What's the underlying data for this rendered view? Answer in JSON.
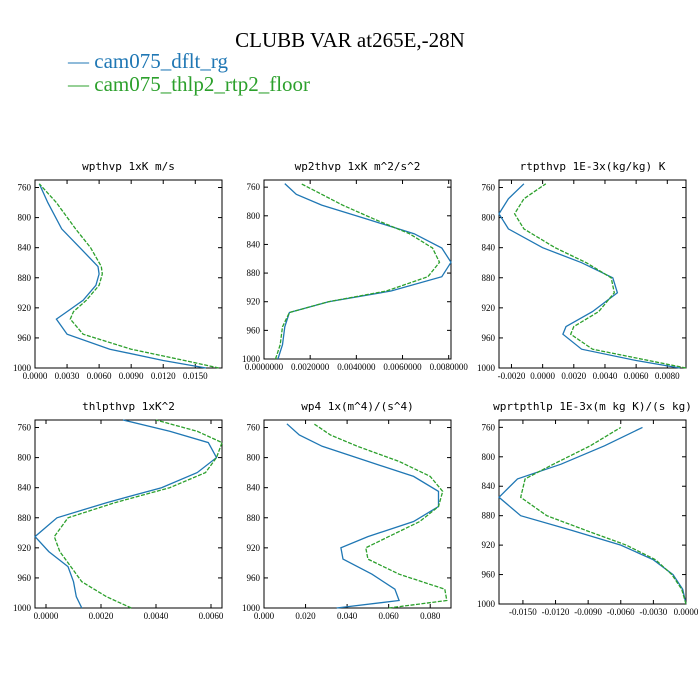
{
  "title": "CLUBB VAR at265E,-28N",
  "legend": [
    {
      "label": "— cam075_dflt_rg",
      "color": "#1f77b4"
    },
    {
      "label": "— cam075_thlp2_rtp2_floor",
      "color": "#2ca02c"
    }
  ],
  "chart_data": [
    {
      "type": "line",
      "title": "wpthvp  1xK m/s",
      "xlim": [
        0,
        0.0175
      ],
      "xticks": [
        0,
        0.003,
        0.006,
        0.009,
        0.012,
        0.015
      ],
      "xtick_labels": [
        "0.0000",
        "0.0030",
        "0.0060",
        "0.0090",
        "0.0120",
        "0.0150"
      ],
      "ylim": [
        1000,
        750
      ],
      "yticks": [
        760,
        800,
        840,
        880,
        920,
        960,
        1000
      ],
      "series": [
        {
          "name": "cam075_dflt_rg",
          "color": "#1f77b4",
          "dash": false,
          "x": [
            0.016,
            0.012,
            0.007,
            0.003,
            0.002,
            0.003,
            0.0045,
            0.0057,
            0.006,
            0.0059,
            0.0042,
            0.0025,
            0.0012,
            0.0004
          ],
          "y": [
            1000,
            990,
            975,
            955,
            935,
            925,
            910,
            890,
            875,
            865,
            840,
            815,
            780,
            755
          ]
        },
        {
          "name": "cam075_thlp2_rtp2_floor",
          "color": "#2ca02c",
          "dash": true,
          "x": [
            0.0172,
            0.014,
            0.009,
            0.0045,
            0.0033,
            0.0036,
            0.0048,
            0.006,
            0.0063,
            0.0062,
            0.0052,
            0.0038,
            0.002,
            0.0004
          ],
          "y": [
            1000,
            990,
            975,
            955,
            935,
            925,
            910,
            890,
            875,
            865,
            840,
            815,
            780,
            755
          ]
        }
      ]
    },
    {
      "type": "line",
      "title": "wp2thvp  1xK m^2/s^2",
      "xlim": [
        0,
        0.0081
      ],
      "xticks": [
        0,
        0.002,
        0.004,
        0.006,
        0.008
      ],
      "xtick_labels": [
        "0.0000000",
        "0.0020000",
        "0.0040000",
        "0.0060000",
        "0.0080000"
      ],
      "ylim": [
        1000,
        750
      ],
      "yticks": [
        760,
        800,
        840,
        880,
        920,
        960,
        1000
      ],
      "series": [
        {
          "name": "cam075_dflt_rg",
          "color": "#1f77b4",
          "dash": false,
          "x": [
            0.0006,
            0.0008,
            0.0009,
            0.0011,
            0.0028,
            0.0055,
            0.0077,
            0.0081,
            0.0077,
            0.0065,
            0.0045,
            0.0025,
            0.0014,
            0.0009
          ],
          "y": [
            1000,
            980,
            955,
            935,
            920,
            905,
            885,
            865,
            845,
            825,
            805,
            785,
            770,
            755
          ]
        },
        {
          "name": "cam075_thlp2_rtp2_floor",
          "color": "#2ca02c",
          "dash": true,
          "x": [
            0.0005,
            0.0007,
            0.0008,
            0.0011,
            0.0028,
            0.0053,
            0.0071,
            0.0076,
            0.0073,
            0.0063,
            0.0048,
            0.0034,
            0.0025,
            0.0016
          ],
          "y": [
            1000,
            980,
            955,
            935,
            920,
            905,
            885,
            865,
            845,
            825,
            805,
            785,
            770,
            755
          ]
        }
      ]
    },
    {
      "type": "line",
      "title": "rtpthvp  1E-3x(kg/kg) K",
      "xlim": [
        -0.0028,
        0.0092
      ],
      "xticks": [
        -0.002,
        0,
        0.002,
        0.004,
        0.006,
        0.008
      ],
      "xtick_labels": [
        "-0.0020",
        "0.0000",
        "0.0020",
        "0.0040",
        "0.0060",
        "0.0080"
      ],
      "ylim": [
        1000,
        750
      ],
      "yticks": [
        760,
        800,
        840,
        880,
        920,
        960,
        1000
      ],
      "series": [
        {
          "name": "cam075_dflt_rg",
          "color": "#1f77b4",
          "dash": false,
          "x": [
            0.0088,
            0.006,
            0.0025,
            0.0013,
            0.0015,
            0.0032,
            0.0048,
            0.0045,
            0.0025,
            0.0,
            -0.0022,
            -0.0028,
            -0.0022,
            -0.0012
          ],
          "y": [
            1000,
            990,
            975,
            955,
            945,
            925,
            900,
            880,
            860,
            840,
            815,
            795,
            775,
            755
          ]
        },
        {
          "name": "cam075_thlp2_rtp2_floor",
          "color": "#2ca02c",
          "dash": true,
          "x": [
            0.0092,
            0.0068,
            0.0032,
            0.0018,
            0.002,
            0.0036,
            0.0046,
            0.0044,
            0.0028,
            0.0008,
            -0.0012,
            -0.0018,
            -0.0012,
            0.0002
          ],
          "y": [
            1000,
            990,
            975,
            955,
            945,
            925,
            900,
            880,
            860,
            840,
            815,
            795,
            775,
            755
          ]
        }
      ]
    },
    {
      "type": "line",
      "title": "thlpthvp  1xK^2",
      "xlim": [
        -0.0004,
        0.0064
      ],
      "xticks": [
        0,
        0.002,
        0.004,
        0.006
      ],
      "xtick_labels": [
        "0.0000",
        "0.0020",
        "0.0040",
        "0.0060"
      ],
      "ylim": [
        1000,
        750
      ],
      "yticks": [
        760,
        800,
        840,
        880,
        920,
        960,
        1000
      ],
      "series": [
        {
          "name": "cam075_dflt_rg",
          "color": "#1f77b4",
          "dash": false,
          "x": [
            0.0013,
            0.0011,
            0.001,
            0.0008,
            0.0001,
            -0.0004,
            0.0004,
            0.0022,
            0.0042,
            0.0055,
            0.0062,
            0.0059,
            0.0045,
            0.0028
          ],
          "y": [
            1000,
            985,
            965,
            945,
            925,
            905,
            880,
            860,
            840,
            820,
            800,
            780,
            765,
            750
          ]
        },
        {
          "name": "cam075_thlp2_rtp2_floor",
          "color": "#2ca02c",
          "dash": true,
          "x": [
            0.0031,
            0.0022,
            0.0013,
            0.0009,
            0.0005,
            0.0003,
            0.0008,
            0.0025,
            0.0045,
            0.0058,
            0.0062,
            0.0064,
            0.0055,
            0.004
          ],
          "y": [
            1000,
            985,
            965,
            945,
            925,
            905,
            880,
            860,
            840,
            820,
            800,
            780,
            765,
            750
          ]
        }
      ]
    },
    {
      "type": "line",
      "title": "wp4  1x(m^4)/(s^4)",
      "xlim": [
        0,
        0.09
      ],
      "xticks": [
        0,
        0.02,
        0.04,
        0.06,
        0.08
      ],
      "xtick_labels": [
        "0.000",
        "0.020",
        "0.040",
        "0.060",
        "0.080"
      ],
      "ylim": [
        1000,
        750
      ],
      "yticks": [
        760,
        800,
        840,
        880,
        920,
        960,
        1000
      ],
      "series": [
        {
          "name": "cam075_dflt_rg",
          "color": "#1f77b4",
          "dash": false,
          "x": [
            0.035,
            0.065,
            0.063,
            0.052,
            0.038,
            0.037,
            0.05,
            0.072,
            0.084,
            0.084,
            0.072,
            0.05,
            0.028,
            0.017,
            0.011
          ],
          "y": [
            1000,
            990,
            975,
            955,
            935,
            920,
            905,
            885,
            865,
            845,
            825,
            805,
            785,
            770,
            755
          ]
        },
        {
          "name": "cam075_thlp2_rtp2_floor",
          "color": "#2ca02c",
          "dash": true,
          "x": [
            0.06,
            0.088,
            0.087,
            0.065,
            0.05,
            0.049,
            0.06,
            0.075,
            0.084,
            0.086,
            0.08,
            0.065,
            0.045,
            0.032,
            0.024
          ],
          "y": [
            1000,
            990,
            975,
            955,
            935,
            920,
            905,
            885,
            865,
            845,
            825,
            805,
            785,
            770,
            755
          ]
        }
      ]
    },
    {
      "type": "line",
      "title": "wprtpthlp  1E-3x(m kg K)/(s kg)",
      "xlim": [
        -0.0172,
        0.0
      ],
      "xticks": [
        -0.015,
        -0.012,
        -0.009,
        -0.006,
        -0.003,
        0.0
      ],
      "xtick_labels": [
        "-0.0150",
        "-0.0120",
        "-0.0090",
        "-0.0060",
        "-0.0030",
        "0.0000"
      ],
      "ylim": [
        1000,
        750
      ],
      "yticks": [
        760,
        800,
        840,
        880,
        920,
        960,
        1000
      ],
      "series": [
        {
          "name": "cam075_dflt_rg",
          "color": "#1f77b4",
          "dash": false,
          "x": [
            0.0,
            -0.0003,
            -0.0012,
            -0.003,
            -0.006,
            -0.0105,
            -0.0152,
            -0.0172,
            -0.0155,
            -0.0115,
            -0.0075,
            -0.004
          ],
          "y": [
            1000,
            980,
            960,
            940,
            920,
            900,
            880,
            855,
            830,
            810,
            785,
            760
          ]
        },
        {
          "name": "cam075_thlp2_rtp2_floor",
          "color": "#2ca02c",
          "dash": true,
          "x": [
            0.0,
            -0.0004,
            -0.0013,
            -0.0028,
            -0.0055,
            -0.0092,
            -0.0128,
            -0.0152,
            -0.0148,
            -0.0122,
            -0.0088,
            -0.006
          ],
          "y": [
            1000,
            980,
            960,
            940,
            920,
            900,
            880,
            855,
            830,
            810,
            785,
            760
          ]
        }
      ]
    }
  ]
}
